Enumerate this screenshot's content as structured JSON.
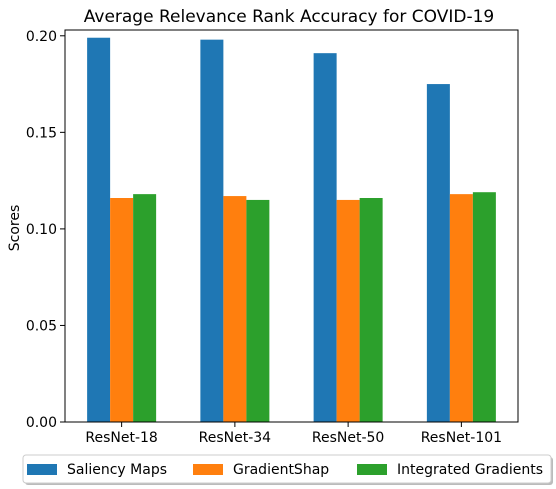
{
  "chart_data": {
    "type": "bar",
    "title": "Average Relevance Rank Accuracy for COVID-19",
    "xlabel": "",
    "ylabel": "Scores",
    "categories": [
      "ResNet-18",
      "ResNet-34",
      "ResNet-50",
      "ResNet-101"
    ],
    "series": [
      {
        "name": "Saliency Maps",
        "color": "#1f77b4",
        "values": [
          0.199,
          0.198,
          0.191,
          0.175
        ]
      },
      {
        "name": "GradientShap",
        "color": "#ff7f0e",
        "values": [
          0.116,
          0.117,
          0.115,
          0.118
        ]
      },
      {
        "name": "Integrated Gradients",
        "color": "#2ca02c",
        "values": [
          0.118,
          0.115,
          0.116,
          0.119
        ]
      }
    ],
    "ylim": [
      0,
      0.203
    ],
    "yticks": [
      0.0,
      0.05,
      0.1,
      0.15,
      0.2
    ],
    "ytick_labels": [
      "0.00",
      "0.05",
      "0.10",
      "0.15",
      "0.20"
    ],
    "grid": false,
    "legend_position": "bottom-center"
  }
}
